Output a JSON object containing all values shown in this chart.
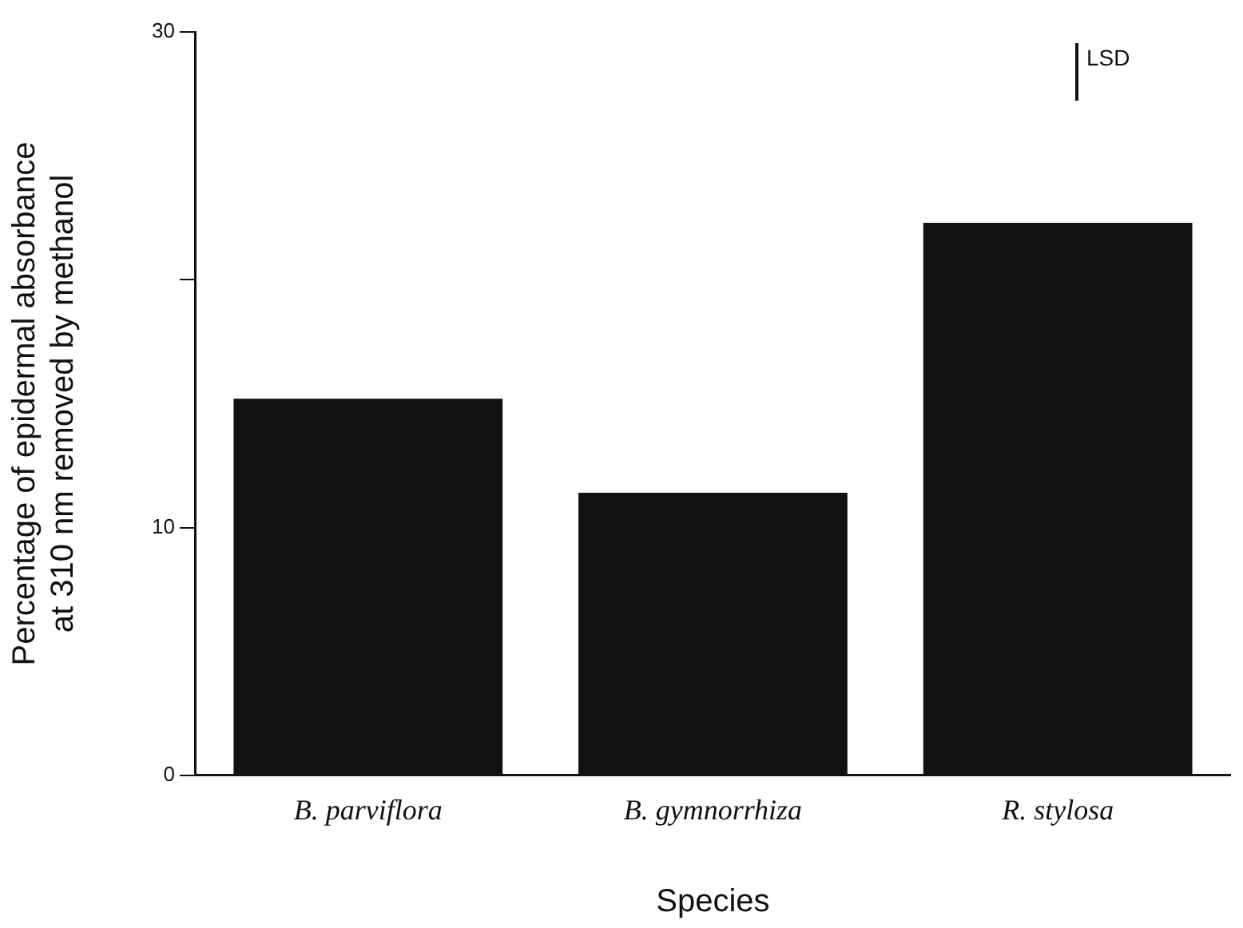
{
  "chart_data": {
    "type": "bar",
    "xlabel": "Species",
    "ylabel": "Percentage of epidermal absorbance\nat 310 nm removed by methanol",
    "categories": [
      "B. parviflora",
      "B. gymnorrhiza",
      "R. stylosa"
    ],
    "values": [
      15.2,
      11.4,
      22.3
    ],
    "color": "#111111",
    "ylim": [
      0,
      30
    ],
    "yticks": [
      0,
      10,
      {
        "value": 20,
        "label": null
      },
      30
    ],
    "grid": false,
    "legend": false,
    "annotations": [
      "LSD"
    ]
  }
}
